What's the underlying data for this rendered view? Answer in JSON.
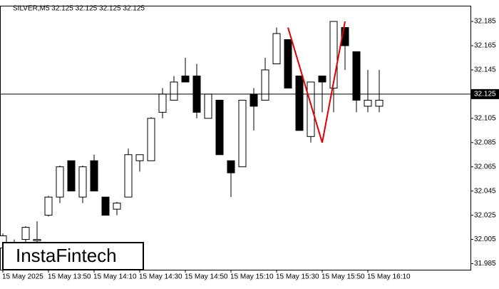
{
  "chart_data": {
    "type": "candlestick",
    "title": "SILVER,M5  32.125 32.125 32.125 32.125",
    "logo": "InstaFintech",
    "categories": [
      "15 May 2025",
      null,
      null,
      null,
      "15 May 13:50",
      null,
      null,
      null,
      "15 May 14:10",
      null,
      null,
      null,
      "15 May 14:30",
      null,
      null,
      null,
      "15 May 14:50",
      null,
      null,
      null,
      "15 May 15:10",
      null,
      null,
      null,
      "15 May 15:30",
      null,
      null,
      null,
      "15 May 15:50",
      null,
      null,
      null,
      "15 May 16:10",
      null
    ],
    "open": [
      31.998,
      32.002,
      32.005,
      32.004,
      32.025,
      32.04,
      32.07,
      32.04,
      32.07,
      32.04,
      32.03,
      32.04,
      32.07,
      32.07,
      32.11,
      32.12,
      32.14,
      32.14,
      32.105,
      32.12,
      32.07,
      32.065,
      32.125,
      32.12,
      32.15,
      32.17,
      32.14,
      32.09,
      32.14,
      32.13,
      32.18,
      32.16,
      32.115,
      32.115
    ],
    "high": [
      32.01,
      32.005,
      32.016,
      32.02,
      32.041,
      32.066,
      32.07,
      32.066,
      32.075,
      32.04,
      32.036,
      32.08,
      32.075,
      32.106,
      32.13,
      32.14,
      32.155,
      32.15,
      32.125,
      32.12,
      32.07,
      32.12,
      32.13,
      32.155,
      32.18,
      32.17,
      32.14,
      32.135,
      32.14,
      32.185,
      32.18,
      32.16,
      32.145,
      32.145
    ],
    "low": [
      31.995,
      31.995,
      32.002,
      31.998,
      32.024,
      32.035,
      32.045,
      32.035,
      32.045,
      32.025,
      32.025,
      32.04,
      32.061,
      32.07,
      32.105,
      32.12,
      32.135,
      32.105,
      32.105,
      32.075,
      32.04,
      32.065,
      32.095,
      32.12,
      32.15,
      32.13,
      32.095,
      32.085,
      32.11,
      32.11,
      32.145,
      32.11,
      32.11,
      32.11
    ],
    "close": [
      32.008,
      32.0,
      32.015,
      32.005,
      32.04,
      32.065,
      32.045,
      32.065,
      32.045,
      32.025,
      32.035,
      32.075,
      32.075,
      32.105,
      32.125,
      32.135,
      32.135,
      32.11,
      32.125,
      32.075,
      32.06,
      32.12,
      32.115,
      32.145,
      32.175,
      32.13,
      32.095,
      32.135,
      32.135,
      32.185,
      32.165,
      32.12,
      32.12,
      32.12
    ],
    "up_color": "#ffffff",
    "down_color": "#000000",
    "current_price": 32.125,
    "pattern": {
      "color": "#e00000",
      "index": [
        25,
        28,
        30
      ],
      "values": [
        32.18,
        32.085,
        32.185
      ]
    },
    "ylim": [
      31.98,
      32.198
    ],
    "yticks": [
      32.185,
      32.165,
      32.145,
      32.105,
      32.085,
      32.065,
      32.045,
      32.025,
      32.005,
      31.985
    ]
  }
}
